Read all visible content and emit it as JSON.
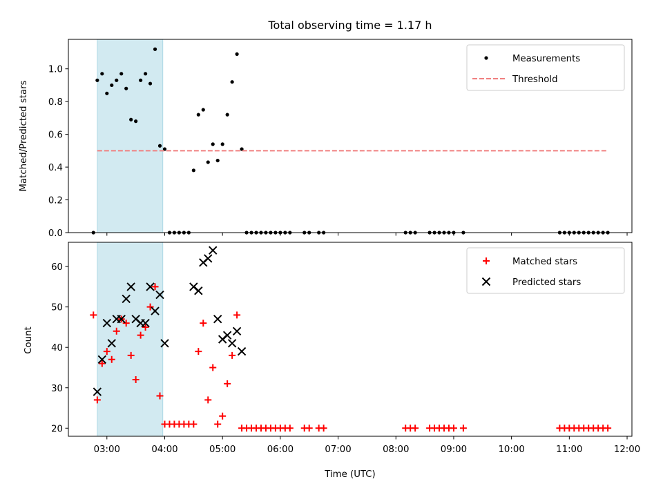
{
  "colors": {
    "measurement": "#000000",
    "threshold": "#f08080",
    "matched": "#ff0000",
    "predicted": "#000000",
    "shade": "#add8e6"
  },
  "chart_data": [
    {
      "type": "scatter",
      "title": "Total observing time = 1.17 h",
      "xlabel": "",
      "ylabel": "Matched/Predicted stars",
      "xlim": [
        "02:20",
        "12:05"
      ],
      "ylim": [
        0,
        1.18
      ],
      "yticks": [
        "0.0",
        "0.2",
        "0.4",
        "0.6",
        "0.8",
        "1.0"
      ],
      "shaded_span": [
        "02:50",
        "03:58"
      ],
      "legend": {
        "position": "top-right",
        "entries": [
          "Measurements",
          "Threshold"
        ]
      },
      "series": [
        {
          "name": "Measurements",
          "marker": "dot",
          "points": [
            [
              "02:46",
              0.0
            ],
            [
              "02:50",
              0.93
            ],
            [
              "02:55",
              0.97
            ],
            [
              "03:00",
              0.85
            ],
            [
              "03:05",
              0.9
            ],
            [
              "03:10",
              0.93
            ],
            [
              "03:15",
              0.97
            ],
            [
              "03:20",
              0.88
            ],
            [
              "03:25",
              0.69
            ],
            [
              "03:30",
              0.68
            ],
            [
              "03:35",
              0.93
            ],
            [
              "03:40",
              0.97
            ],
            [
              "03:45",
              0.91
            ],
            [
              "03:50",
              1.12
            ],
            [
              "03:55",
              0.53
            ],
            [
              "04:00",
              0.51
            ],
            [
              "04:05",
              0.0
            ],
            [
              "04:10",
              0.0
            ],
            [
              "04:15",
              0.0
            ],
            [
              "04:20",
              0.0
            ],
            [
              "04:25",
              0.0
            ],
            [
              "04:30",
              0.38
            ],
            [
              "04:35",
              0.72
            ],
            [
              "04:40",
              0.75
            ],
            [
              "04:45",
              0.43
            ],
            [
              "04:50",
              0.54
            ],
            [
              "04:55",
              0.44
            ],
            [
              "05:00",
              0.54
            ],
            [
              "05:05",
              0.72
            ],
            [
              "05:10",
              0.92
            ],
            [
              "05:15",
              1.09
            ],
            [
              "05:20",
              0.51
            ],
            [
              "05:25",
              0.0
            ],
            [
              "05:30",
              0.0
            ],
            [
              "05:35",
              0.0
            ],
            [
              "05:40",
              0.0
            ],
            [
              "05:45",
              0.0
            ],
            [
              "05:50",
              0.0
            ],
            [
              "05:55",
              0.0
            ],
            [
              "06:00",
              0.0
            ],
            [
              "06:05",
              0.0
            ],
            [
              "06:10",
              0.0
            ],
            [
              "06:25",
              0.0
            ],
            [
              "06:30",
              0.0
            ],
            [
              "06:40",
              0.0
            ],
            [
              "06:45",
              0.0
            ],
            [
              "08:10",
              0.0
            ],
            [
              "08:15",
              0.0
            ],
            [
              "08:20",
              0.0
            ],
            [
              "08:35",
              0.0
            ],
            [
              "08:40",
              0.0
            ],
            [
              "08:45",
              0.0
            ],
            [
              "08:50",
              0.0
            ],
            [
              "08:55",
              0.0
            ],
            [
              "09:00",
              0.0
            ],
            [
              "09:10",
              0.0
            ],
            [
              "10:50",
              0.0
            ],
            [
              "10:55",
              0.0
            ],
            [
              "11:00",
              0.0
            ],
            [
              "11:05",
              0.0
            ],
            [
              "11:10",
              0.0
            ],
            [
              "11:15",
              0.0
            ],
            [
              "11:20",
              0.0
            ],
            [
              "11:25",
              0.0
            ],
            [
              "11:30",
              0.0
            ],
            [
              "11:35",
              0.0
            ],
            [
              "11:40",
              0.0
            ]
          ]
        },
        {
          "name": "Threshold",
          "style": "dashed-line",
          "points": [
            [
              "02:50",
              0.5
            ],
            [
              "11:40",
              0.5
            ]
          ]
        }
      ]
    },
    {
      "type": "scatter",
      "title": "",
      "xlabel": "Time (UTC)",
      "ylabel": "Count",
      "xlim": [
        "02:20",
        "12:05"
      ],
      "ylim": [
        18,
        66
      ],
      "yticks": [
        "20",
        "30",
        "40",
        "50",
        "60"
      ],
      "xticks": [
        "03:00",
        "04:00",
        "05:00",
        "06:00",
        "07:00",
        "08:00",
        "09:00",
        "10:00",
        "11:00",
        "12:00"
      ],
      "shaded_span": [
        "02:50",
        "03:58"
      ],
      "legend": {
        "position": "top-right",
        "entries": [
          "Matched stars",
          "Predicted stars"
        ]
      },
      "series": [
        {
          "name": "Matched stars",
          "marker": "plus",
          "points": [
            [
              "02:46",
              48
            ],
            [
              "02:50",
              27
            ],
            [
              "02:55",
              36
            ],
            [
              "03:00",
              39
            ],
            [
              "03:05",
              37
            ],
            [
              "03:10",
              44
            ],
            [
              "03:15",
              47
            ],
            [
              "03:20",
              46
            ],
            [
              "03:25",
              38
            ],
            [
              "03:30",
              32
            ],
            [
              "03:35",
              43
            ],
            [
              "03:40",
              45
            ],
            [
              "03:45",
              50
            ],
            [
              "03:50",
              55
            ],
            [
              "03:55",
              28
            ],
            [
              "04:00",
              21
            ],
            [
              "04:05",
              21
            ],
            [
              "04:10",
              21
            ],
            [
              "04:15",
              21
            ],
            [
              "04:20",
              21
            ],
            [
              "04:25",
              21
            ],
            [
              "04:30",
              21
            ],
            [
              "04:35",
              39
            ],
            [
              "04:40",
              46
            ],
            [
              "04:45",
              27
            ],
            [
              "04:50",
              35
            ],
            [
              "04:55",
              21
            ],
            [
              "05:00",
              23
            ],
            [
              "05:05",
              31
            ],
            [
              "05:10",
              38
            ],
            [
              "05:15",
              48
            ],
            [
              "05:20",
              20
            ],
            [
              "05:25",
              20
            ],
            [
              "05:30",
              20
            ],
            [
              "05:35",
              20
            ],
            [
              "05:40",
              20
            ],
            [
              "05:45",
              20
            ],
            [
              "05:50",
              20
            ],
            [
              "05:55",
              20
            ],
            [
              "06:00",
              20
            ],
            [
              "06:05",
              20
            ],
            [
              "06:10",
              20
            ],
            [
              "06:25",
              20
            ],
            [
              "06:30",
              20
            ],
            [
              "06:40",
              20
            ],
            [
              "06:45",
              20
            ],
            [
              "08:10",
              20
            ],
            [
              "08:15",
              20
            ],
            [
              "08:20",
              20
            ],
            [
              "08:35",
              20
            ],
            [
              "08:40",
              20
            ],
            [
              "08:45",
              20
            ],
            [
              "08:50",
              20
            ],
            [
              "08:55",
              20
            ],
            [
              "09:00",
              20
            ],
            [
              "09:10",
              20
            ],
            [
              "10:50",
              20
            ],
            [
              "10:55",
              20
            ],
            [
              "11:00",
              20
            ],
            [
              "11:05",
              20
            ],
            [
              "11:10",
              20
            ],
            [
              "11:15",
              20
            ],
            [
              "11:20",
              20
            ],
            [
              "11:25",
              20
            ],
            [
              "11:30",
              20
            ],
            [
              "11:35",
              20
            ],
            [
              "11:40",
              20
            ]
          ]
        },
        {
          "name": "Predicted stars",
          "marker": "x",
          "points": [
            [
              "02:50",
              29
            ],
            [
              "02:55",
              37
            ],
            [
              "03:00",
              46
            ],
            [
              "03:05",
              41
            ],
            [
              "03:10",
              47
            ],
            [
              "03:15",
              47
            ],
            [
              "03:20",
              52
            ],
            [
              "03:25",
              55
            ],
            [
              "03:30",
              47
            ],
            [
              "03:35",
              46
            ],
            [
              "03:40",
              46
            ],
            [
              "03:45",
              55
            ],
            [
              "03:50",
              49
            ],
            [
              "03:55",
              53
            ],
            [
              "04:00",
              41
            ],
            [
              "04:30",
              55
            ],
            [
              "04:35",
              54
            ],
            [
              "04:40",
              61
            ],
            [
              "04:45",
              62
            ],
            [
              "04:50",
              64
            ],
            [
              "04:55",
              47
            ],
            [
              "05:00",
              42
            ],
            [
              "05:05",
              43
            ],
            [
              "05:10",
              41
            ],
            [
              "05:15",
              44
            ],
            [
              "05:20",
              39
            ]
          ]
        }
      ]
    }
  ]
}
